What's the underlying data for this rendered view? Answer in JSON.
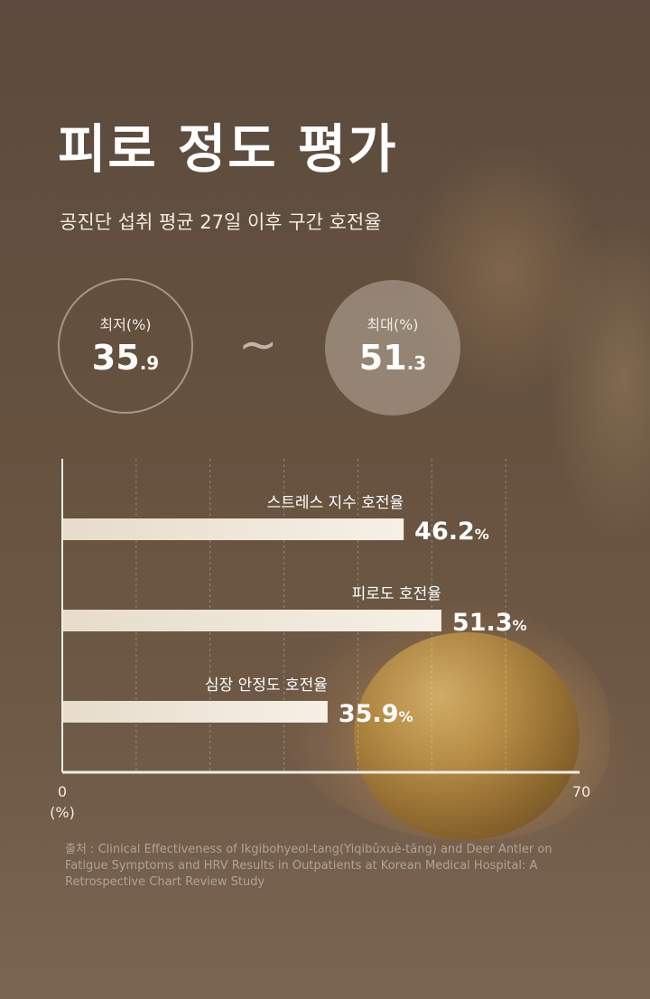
{
  "title": "피로 정도 평가",
  "subtitle": "공진단 섭취 평균 27일 이후 구간 호전율",
  "min": {
    "label": "최저(%)",
    "int": "35",
    "dec": ".9"
  },
  "max": {
    "label": "최대(%)",
    "int": "51",
    "dec": ".3"
  },
  "tilde": "~",
  "chart_data": {
    "type": "bar",
    "orientation": "horizontal",
    "categories": [
      "스트레스 지수 호전율",
      "피로도 호전율",
      "심장 안정도 호전율"
    ],
    "values": [
      46.2,
      51.3,
      35.9
    ],
    "value_labels": [
      "46.2",
      "51.3",
      "35.9"
    ],
    "value_unit": "%",
    "xlim": [
      0,
      70
    ],
    "tick_labels": {
      "start": "0",
      "end": "70"
    },
    "unit_label": "(%)",
    "grid": true,
    "bar_color": "#f6f0e6"
  },
  "source": "출처 : Clinical Effectiveness of Ikgibohyeol-tang(Yiqibǔxuè-tāng) and Deer Antler on Fatigue Symptoms and HRV Results in Outpatients at Korean Medical Hospital: A Retrospective Chart Review Study"
}
